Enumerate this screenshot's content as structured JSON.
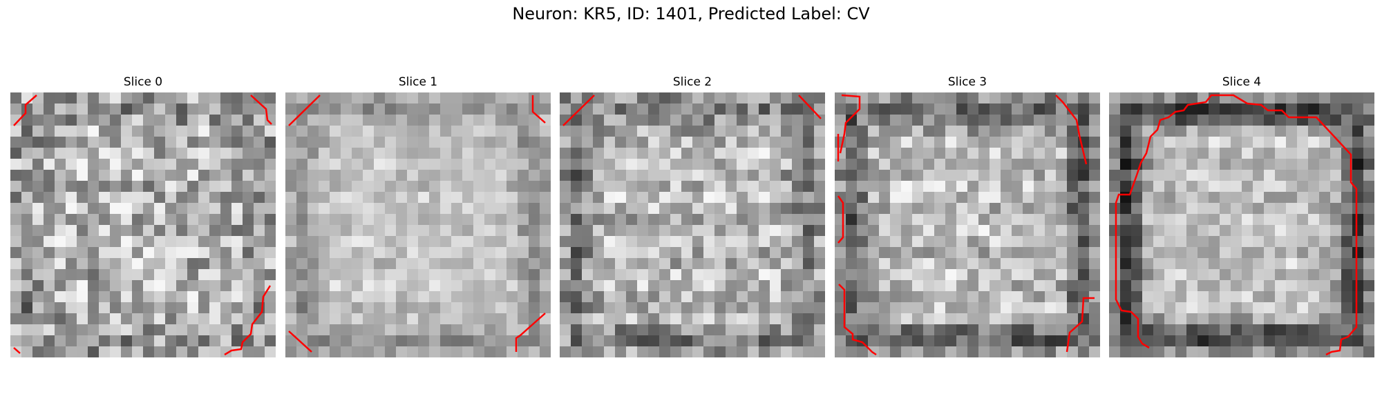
{
  "figure": {
    "title": "Neuron: KR5, ID: 1401, Predicted Label: CV"
  },
  "panels": [
    {
      "title": "Slice 0",
      "contrast": 0.55,
      "edge_darkness": 0.25,
      "outline_color": "#e41a1c"
    },
    {
      "title": "Slice 1",
      "contrast": 0.25,
      "edge_darkness": 0.35,
      "outline_color": "#e41a1c"
    },
    {
      "title": "Slice 2",
      "contrast": 0.45,
      "edge_darkness": 0.45,
      "outline_color": "#e41a1c"
    },
    {
      "title": "Slice 3",
      "contrast": 0.4,
      "edge_darkness": 0.65,
      "outline_color": "#e41a1c"
    },
    {
      "title": "Slice 4",
      "contrast": 0.35,
      "edge_darkness": 0.9,
      "outline_color": "#e41a1c"
    }
  ],
  "colors": {
    "outline": "#ff0000",
    "background": "#ffffff"
  }
}
